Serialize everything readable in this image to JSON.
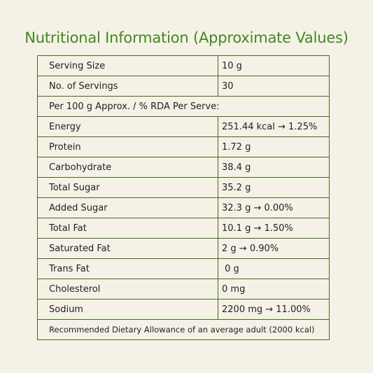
{
  "title": "Nutritional Information (Approximate Values)",
  "rows": [
    {
      "label": "Serving Size",
      "value": "10 g"
    },
    {
      "label": "No. of Servings",
      "value": "30"
    },
    {
      "note": "Per 100 g Approx. / % RDA Per Serve:"
    },
    {
      "label": "Energy",
      "value": "251.44 kcal → 1.25%"
    },
    {
      "label": "Protein",
      "value": "1.72 g"
    },
    {
      "label": "Carbohydrate",
      "value": "38.4 g"
    },
    {
      "label": "Total Sugar",
      "value": "35.2 g"
    },
    {
      "label": "Added Sugar",
      "value": "32.3 g → 0.00%"
    },
    {
      "label": "Total Fat",
      "value": "10.1 g → 1.50%"
    },
    {
      "label": "Saturated Fat",
      "value": "2 g → 0.90%"
    },
    {
      "label": "Trans Fat",
      "value": " 0 g"
    },
    {
      "label": "Cholesterol",
      "value": "0 mg"
    },
    {
      "label": "Sodium",
      "value": "2200 mg → 11.00%"
    }
  ],
  "footer": "Recommended Dietary Allowance of an average adult (2000 kcal)",
  "colors": {
    "title": "#3f8a1f",
    "border": "#3a6e1e",
    "background": "#f6f1e6"
  }
}
